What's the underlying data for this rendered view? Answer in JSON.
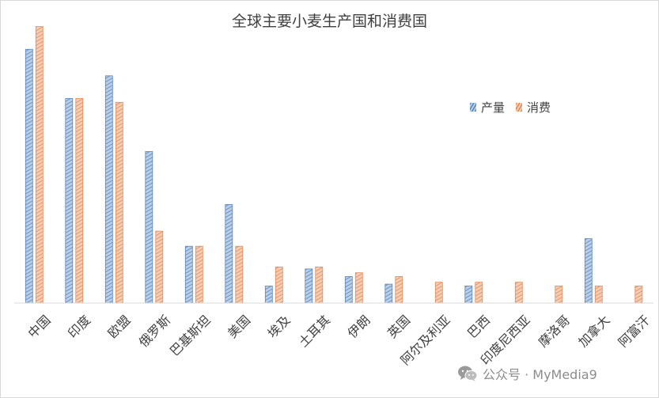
{
  "chart_data": {
    "type": "bar",
    "title": "全球主要小麦生产国和消费国",
    "categories": [
      "中国",
      "印度",
      "欧盟",
      "俄罗斯",
      "巴基斯坦",
      "美国",
      "埃及",
      "土耳其",
      "伊朗",
      "英国",
      "阿尔及利亚",
      "巴西",
      "印度尼西亚",
      "摩洛哥",
      "加拿大",
      "阿富汗"
    ],
    "series": [
      {
        "name": "产量",
        "color": "#7ea4cf",
        "values": [
          134,
          108,
          120,
          80,
          30,
          52,
          9,
          18,
          14,
          10,
          0,
          9,
          0,
          0,
          34,
          0
        ]
      },
      {
        "name": "消费",
        "color": "#eaa77f",
        "values": [
          146,
          108,
          106,
          38,
          30,
          30,
          19,
          19,
          16,
          14,
          11,
          11,
          11,
          9,
          9,
          9
        ]
      }
    ],
    "ylim": [
      0,
      150
    ],
    "grid": false,
    "legend_position": "right"
  },
  "watermark": {
    "text": "公众号 · MyMedia9",
    "icon": "wechat-icon"
  }
}
